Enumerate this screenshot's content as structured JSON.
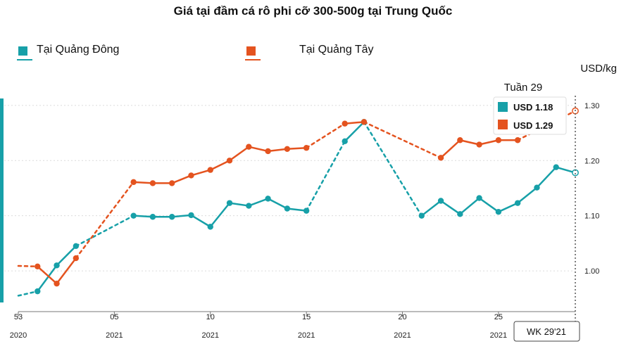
{
  "chart_data": {
    "type": "line",
    "title": "Giá tại đầm cá rô phi cỡ 300-500g tại Trung Quốc",
    "ylabel": "USD/kg",
    "ylim": [
      0.93,
      1.31
    ],
    "y_ticks": [
      "1.00",
      "1.10",
      "1.20",
      "1.30"
    ],
    "y_tick_values": [
      1.0,
      1.1,
      1.2,
      1.3
    ],
    "x_range": [
      0,
      29
    ],
    "x_ticks": [
      {
        "x": 0,
        "week": "53",
        "year": "2020"
      },
      {
        "x": 5,
        "week": "05",
        "year": "2021"
      },
      {
        "x": 10,
        "week": "10",
        "year": "2021"
      },
      {
        "x": 15,
        "week": "15",
        "year": "2021"
      },
      {
        "x": 20,
        "week": "20",
        "year": "2021"
      },
      {
        "x": 25,
        "week": "25",
        "year": "2021"
      }
    ],
    "grid": true,
    "legend_position": "top-left",
    "series": [
      {
        "name": "Tại Quảng Đông",
        "color": "#17a0a8",
        "points": [
          [
            0,
            0.955
          ],
          [
            1,
            0.963
          ],
          [
            2,
            1.01
          ],
          [
            3,
            1.045
          ],
          [
            6,
            1.1
          ],
          [
            7,
            1.098
          ],
          [
            8,
            1.098
          ],
          [
            9,
            1.101
          ],
          [
            10,
            1.08
          ],
          [
            11,
            1.123
          ],
          [
            12,
            1.118
          ],
          [
            13,
            1.131
          ],
          [
            14,
            1.113
          ],
          [
            15,
            1.109
          ],
          [
            17,
            1.235
          ],
          [
            18,
            1.27
          ],
          [
            21,
            1.1
          ],
          [
            22,
            1.127
          ],
          [
            23,
            1.103
          ],
          [
            24,
            1.132
          ],
          [
            25,
            1.107
          ],
          [
            26,
            1.123
          ],
          [
            27,
            1.151
          ],
          [
            28,
            1.188
          ],
          [
            29,
            1.178
          ]
        ],
        "dashed_spans": [
          [
            0,
            1
          ],
          [
            3,
            6
          ],
          [
            15,
            17
          ],
          [
            18,
            21
          ]
        ],
        "open_markers": [
          29
        ]
      },
      {
        "name": "Tại Quảng Tây",
        "color": "#e4531f",
        "points": [
          [
            0,
            1.009
          ],
          [
            1,
            1.008
          ],
          [
            2,
            0.977
          ],
          [
            3,
            1.023
          ],
          [
            6,
            1.161
          ],
          [
            7,
            1.159
          ],
          [
            8,
            1.159
          ],
          [
            9,
            1.173
          ],
          [
            10,
            1.183
          ],
          [
            11,
            1.2
          ],
          [
            12,
            1.225
          ],
          [
            13,
            1.217
          ],
          [
            14,
            1.221
          ],
          [
            15,
            1.223
          ],
          [
            17,
            1.267
          ],
          [
            18,
            1.27
          ],
          [
            22,
            1.205
          ],
          [
            23,
            1.237
          ],
          [
            24,
            1.229
          ],
          [
            25,
            1.237
          ],
          [
            26,
            1.237
          ],
          [
            29,
            1.29
          ]
        ],
        "dashed_spans": [
          [
            0,
            1
          ],
          [
            3,
            6
          ],
          [
            15,
            17
          ],
          [
            18,
            22
          ],
          [
            26,
            29
          ]
        ],
        "open_markers": [
          29
        ]
      }
    ],
    "current": {
      "label": "Tuần 29",
      "x": 29,
      "values": [
        {
          "series": 0,
          "text": "USD 1.18"
        },
        {
          "series": 1,
          "text": "USD 1.29"
        }
      ],
      "badge": "WK 29'21"
    }
  }
}
